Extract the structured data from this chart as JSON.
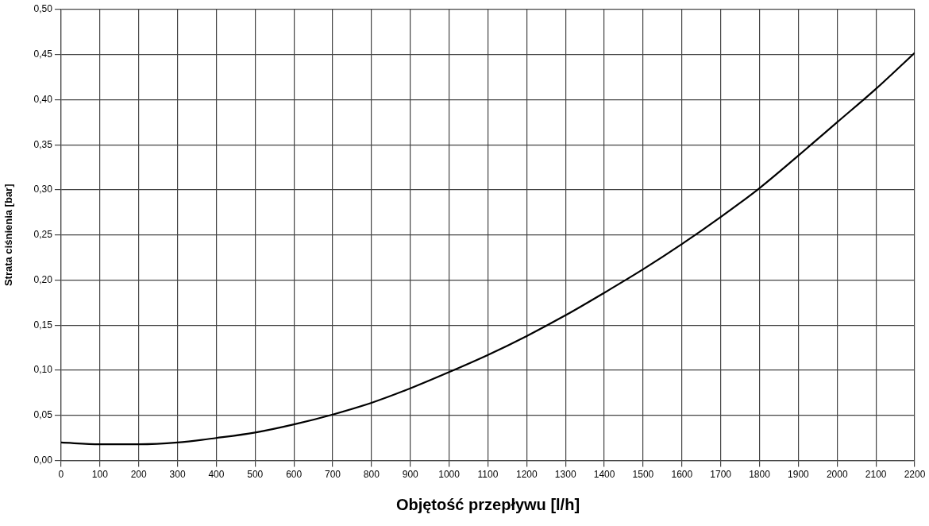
{
  "chart_data": {
    "type": "line",
    "xlabel": "Objętość przepływu [l/h]",
    "ylabel": "Strata ciśnienia [bar]",
    "x": [
      0,
      100,
      200,
      300,
      400,
      500,
      600,
      700,
      800,
      900,
      1000,
      1100,
      1200,
      1300,
      1400,
      1500,
      1600,
      1700,
      1800,
      1900,
      2000,
      2100,
      2200
    ],
    "series": [
      {
        "color": "#000000",
        "values": [
          0.02,
          0.018,
          0.018,
          0.02,
          0.025,
          0.031,
          0.04,
          0.051,
          0.064,
          0.08,
          0.098,
          0.117,
          0.138,
          0.161,
          0.186,
          0.212,
          0.24,
          0.27,
          0.302,
          0.338,
          0.375,
          0.412,
          0.452
        ]
      }
    ],
    "xlim": [
      0,
      2200
    ],
    "xticks": [
      0,
      100,
      200,
      300,
      400,
      500,
      600,
      700,
      800,
      900,
      1000,
      1100,
      1200,
      1300,
      1400,
      1500,
      1600,
      1700,
      1800,
      1900,
      2000,
      2100,
      2200
    ],
    "ylim": [
      0,
      0.5
    ],
    "yticks": [
      {
        "value": 0,
        "label": "0,00"
      },
      {
        "value": 0.05,
        "label": "0,05"
      },
      {
        "value": 0.1,
        "label": "0,10"
      },
      {
        "value": 0.15,
        "label": "0,15"
      },
      {
        "value": 0.2,
        "label": "0,20"
      },
      {
        "value": 0.25,
        "label": "0,25"
      },
      {
        "value": 0.3,
        "label": "0,30"
      },
      {
        "value": 0.35,
        "label": "0,35"
      },
      {
        "value": 0.4,
        "label": "0,40"
      },
      {
        "value": 0.45,
        "label": "0,45"
      },
      {
        "value": 0.5,
        "label": "0,50"
      }
    ],
    "grid": true,
    "marker": "none",
    "line_style": "solid"
  }
}
